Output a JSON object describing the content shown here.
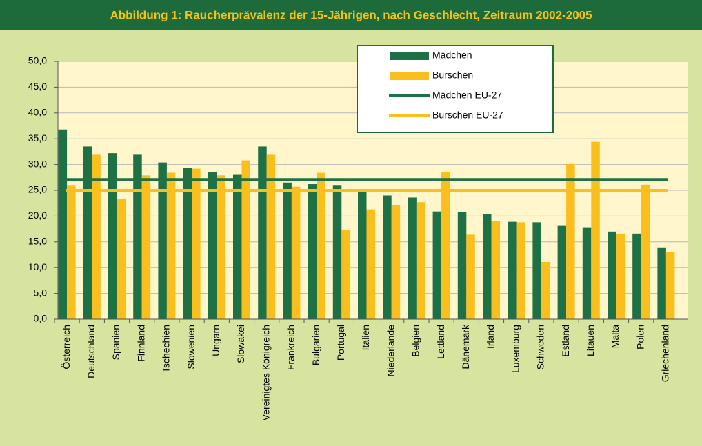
{
  "chart_data": {
    "type": "bar",
    "title": "Abbildung 1: Raucherprävalenz der 15-Jährigen, nach Geschlecht, Zeitraum 2002-2005",
    "categories": [
      "Österreich",
      "Deutschland",
      "Spanien",
      "Finnland",
      "Tschechien",
      "Slowenien",
      "Ungarn",
      "Slowakei",
      "Vereinigtes Königreich",
      "Frankreich",
      "Bulgarien",
      "Portugal",
      "Italien",
      "Niederlande",
      "Belgien",
      "Lettland",
      "Dänemark",
      "Irland",
      "Luxemburg",
      "Schweden",
      "Estland",
      "Litauen",
      "Malta",
      "Polen",
      "Griechenland"
    ],
    "series": [
      {
        "name": "Mädchen",
        "color": "#1e7145",
        "values": [
          36.8,
          33.5,
          32.2,
          31.9,
          30.4,
          29.3,
          28.6,
          28.0,
          33.5,
          26.5,
          26.2,
          25.9,
          24.9,
          24.0,
          23.6,
          20.9,
          20.8,
          20.4,
          18.9,
          18.8,
          18.1,
          17.7,
          17.0,
          16.6,
          13.8
        ]
      },
      {
        "name": "Burschen",
        "color": "#fbbf1d",
        "values": [
          25.9,
          31.9,
          23.4,
          27.9,
          28.4,
          29.2,
          27.9,
          30.8,
          31.9,
          25.7,
          28.4,
          17.3,
          21.3,
          22.1,
          22.7,
          28.6,
          16.4,
          19.1,
          18.8,
          11.1,
          30.1,
          34.4,
          16.6,
          26.1,
          13.1
        ]
      }
    ],
    "reference_lines": [
      {
        "name": "Mädchen EU-27",
        "color": "#1e7145",
        "value": 27.1
      },
      {
        "name": "Burschen EU-27",
        "color": "#fbbf1d",
        "value": 25.0
      }
    ],
    "ylim": [
      0,
      50
    ],
    "yticks": [
      {
        "value": 0,
        "label": "0,0"
      },
      {
        "value": 5,
        "label": "5,0"
      },
      {
        "value": 10,
        "label": "10,0"
      },
      {
        "value": 15,
        "label": "15,0"
      },
      {
        "value": 20,
        "label": "20,0"
      },
      {
        "value": 25,
        "label": "25,0"
      },
      {
        "value": 30,
        "label": "30,0"
      },
      {
        "value": 35,
        "label": "35,0"
      },
      {
        "value": 40,
        "label": "40,0"
      },
      {
        "value": 45,
        "label": "45,0"
      },
      {
        "value": 50,
        "label": "50,0"
      }
    ],
    "grid": true
  }
}
